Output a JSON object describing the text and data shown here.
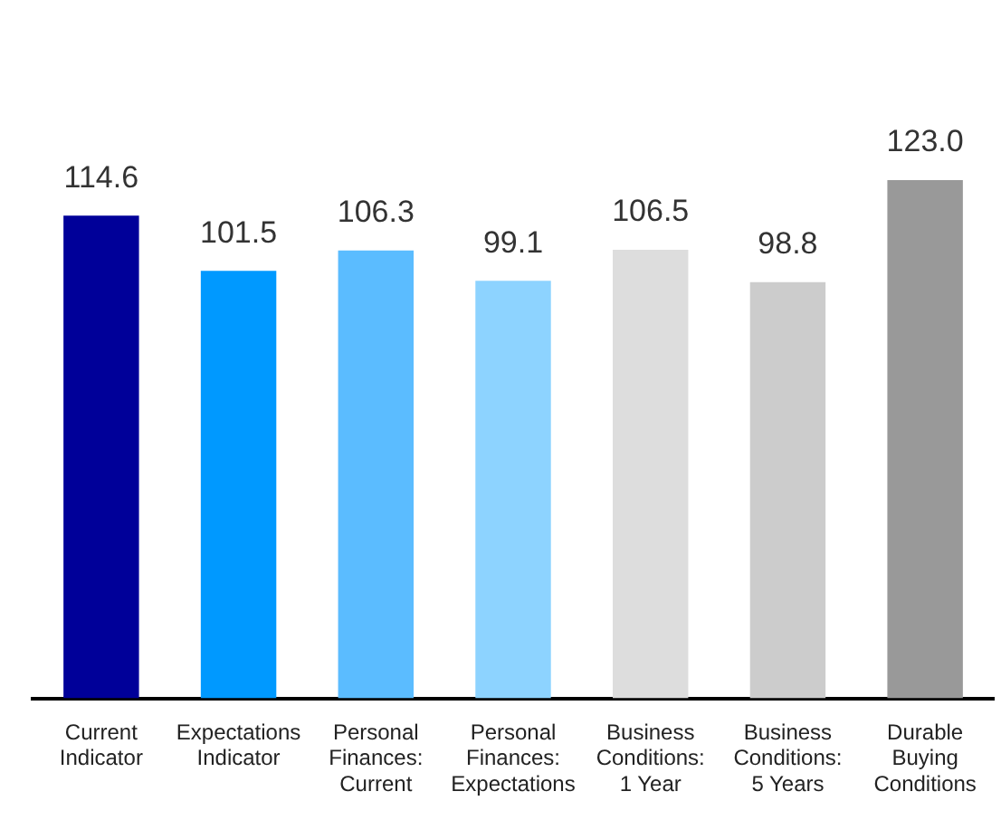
{
  "chart_data": {
    "type": "bar",
    "categories": [
      "Current Indicator",
      "Expectations Indicator",
      "Personal Finances: Current",
      "Personal Finances: Expectations",
      "Business Conditions: 1 Year",
      "Business Conditions: 5 Years",
      "Durable Buying Conditions"
    ],
    "values": [
      114.6,
      101.5,
      106.3,
      99.1,
      106.5,
      98.8,
      123.0
    ],
    "colors": [
      "#000099",
      "#0099ff",
      "#5bbcff",
      "#8dd3ff",
      "#dddddd",
      "#cccccc",
      "#999999"
    ],
    "value_labels": [
      "114.6",
      "101.5",
      "106.3",
      "99.1",
      "106.5",
      "98.8",
      "123.0"
    ],
    "relative": false,
    "grid": false,
    "legend": false
  }
}
